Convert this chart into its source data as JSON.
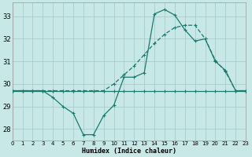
{
  "xlabel": "Humidex (Indice chaleur)",
  "bg_color": "#c8e8e8",
  "grid_color": "#a8cccc",
  "line_color": "#1a7a6e",
  "xmin": 0,
  "xmax": 23,
  "ymin": 27.5,
  "ymax": 33.6,
  "yticks": [
    28,
    29,
    30,
    31,
    32,
    33
  ],
  "xticks": [
    0,
    1,
    2,
    3,
    4,
    5,
    6,
    7,
    8,
    9,
    10,
    11,
    12,
    13,
    14,
    15,
    16,
    17,
    18,
    19,
    20,
    21,
    22,
    23
  ],
  "line_solid_x": [
    0,
    1,
    2,
    3,
    4,
    5,
    6,
    7,
    8,
    9,
    10,
    11,
    12,
    13,
    14,
    15,
    16,
    17,
    18,
    19,
    20,
    21,
    22,
    23
  ],
  "line_solid_y": [
    29.7,
    29.7,
    29.7,
    29.7,
    29.4,
    29.0,
    28.7,
    27.75,
    27.75,
    28.6,
    29.05,
    30.3,
    30.3,
    30.5,
    33.1,
    33.3,
    33.05,
    32.4,
    31.9,
    32.0,
    31.0,
    30.6,
    29.7,
    29.7
  ],
  "line_dashed_x": [
    0,
    1,
    2,
    3,
    4,
    5,
    6,
    7,
    8,
    9,
    10,
    11,
    12,
    13,
    14,
    15,
    16,
    17,
    18,
    19,
    20,
    21,
    22,
    23
  ],
  "line_dashed_y": [
    29.7,
    29.7,
    29.7,
    29.7,
    29.7,
    29.7,
    29.7,
    29.7,
    29.7,
    29.7,
    30.0,
    30.4,
    30.8,
    31.3,
    31.8,
    32.2,
    32.5,
    32.6,
    32.6,
    32.0,
    31.05,
    30.55,
    29.7,
    29.7
  ],
  "line_flat_x": [
    0,
    1,
    2,
    3,
    4,
    5,
    6,
    7,
    8,
    9,
    10,
    11,
    12,
    13,
    14,
    15,
    16,
    17,
    18,
    19,
    20,
    21,
    22,
    23
  ],
  "line_flat_y": [
    29.7,
    29.7,
    29.7,
    29.7,
    29.7,
    29.7,
    29.7,
    29.7,
    29.7,
    29.7,
    29.7,
    29.7,
    29.7,
    29.7,
    29.7,
    29.7,
    29.7,
    29.7,
    29.7,
    29.7,
    29.7,
    29.7,
    29.7,
    29.7
  ]
}
